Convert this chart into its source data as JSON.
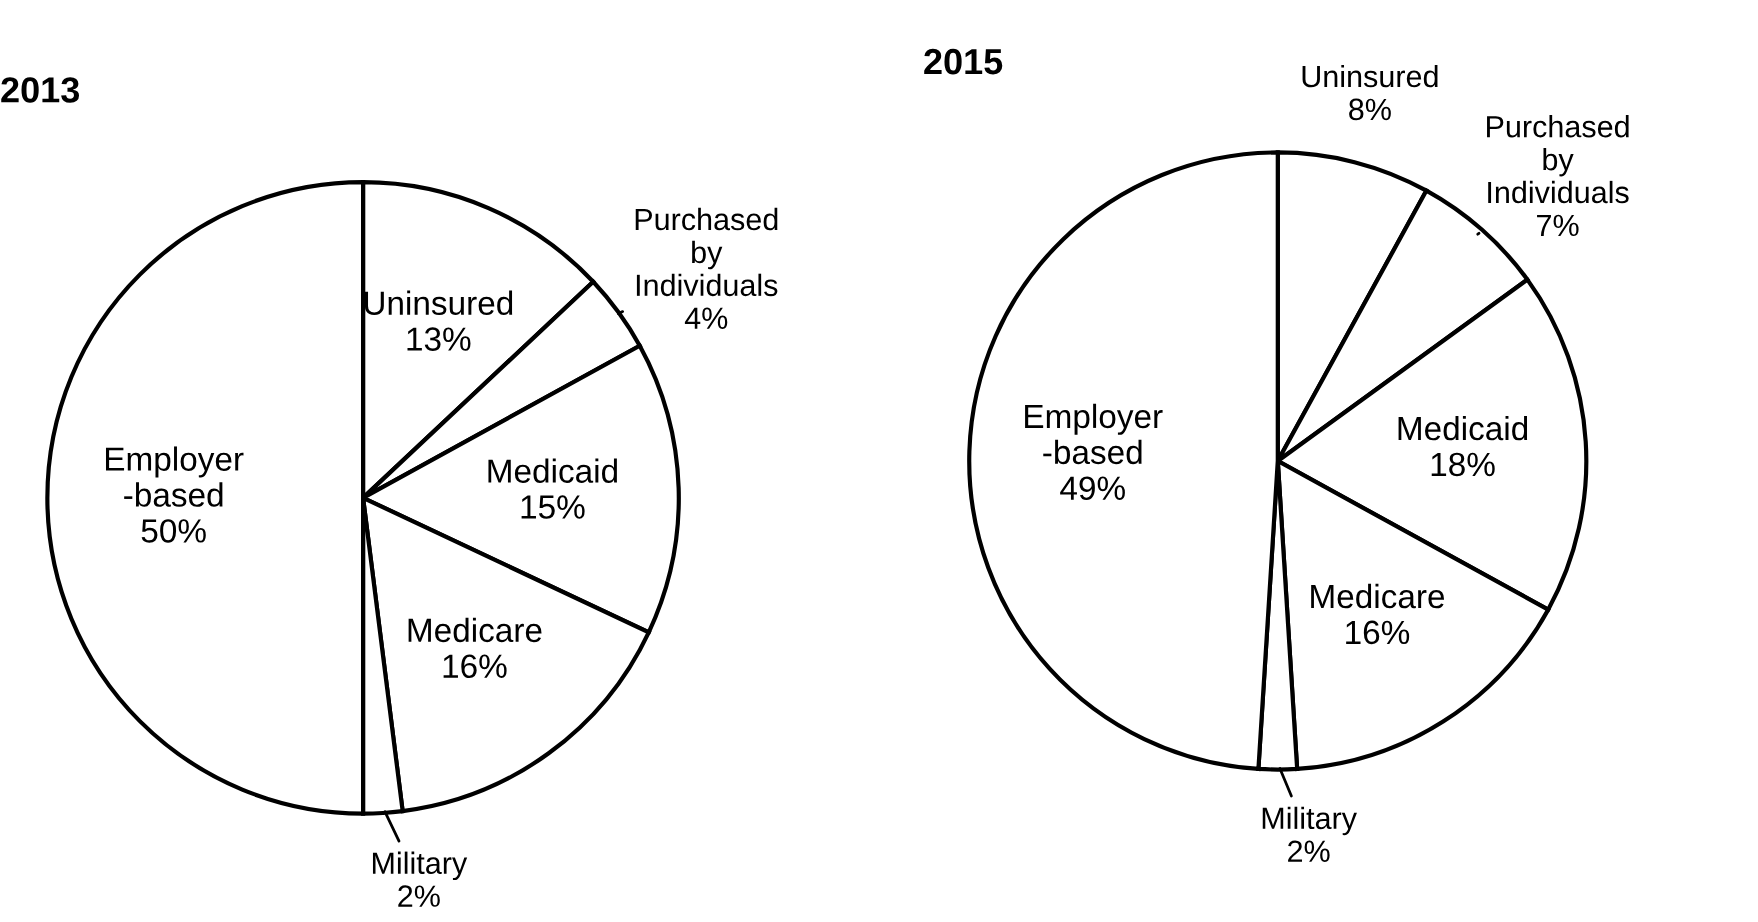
{
  "chart_data": [
    {
      "type": "pie",
      "title": "2013",
      "categories": [
        "Uninsured",
        "Purchased\nby\nIndividuals",
        "Medicaid",
        "Medicare",
        "Military",
        "Employer\n-based"
      ],
      "values": [
        13,
        4,
        15,
        16,
        2,
        50
      ],
      "value_labels": [
        "13%",
        "4%",
        "15%",
        "16%",
        "2%",
        "50%"
      ],
      "colors": [
        "#ffffff",
        "#ffffff",
        "#ffffff",
        "#ffffff",
        "#ffffff",
        "#ffffff"
      ]
    },
    {
      "type": "pie",
      "title": "2015",
      "categories": [
        "Uninsured",
        "Purchased\nby\nIndividuals",
        "Medicaid",
        "Medicare",
        "Military",
        "Employer\n-based"
      ],
      "values": [
        8,
        7,
        18,
        16,
        2,
        49
      ],
      "value_labels": [
        "8%",
        "7%",
        "18%",
        "16%",
        "2%",
        "49%"
      ],
      "colors": [
        "#ffffff",
        "#ffffff",
        "#ffffff",
        "#ffffff",
        "#ffffff",
        "#ffffff"
      ]
    }
  ]
}
